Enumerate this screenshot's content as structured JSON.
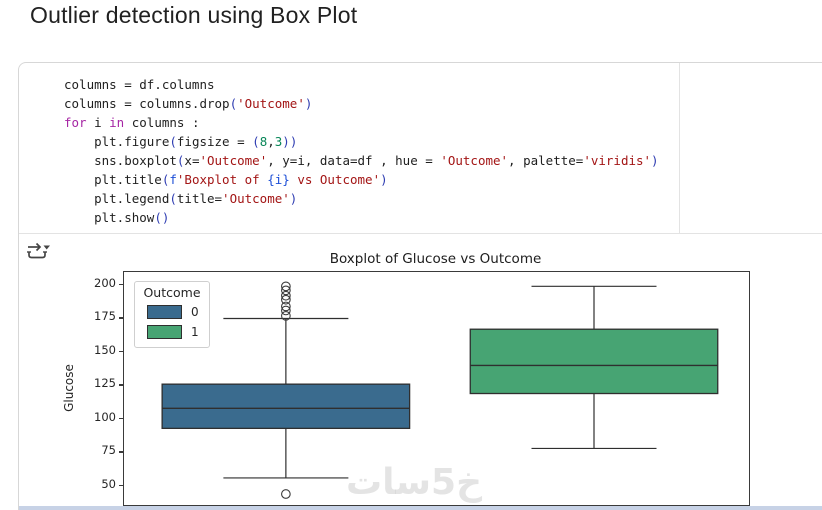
{
  "page": {
    "title": "Outlier detection using Box Plot",
    "watermark": "خ5سات"
  },
  "icons": {
    "output_toggle": "output-toggle-icon"
  },
  "code_cell": {
    "language": "python",
    "lines": [
      [
        {
          "t": "columns = df.columns",
          "c": "d"
        }
      ],
      [
        {
          "t": "columns = columns.drop",
          "c": "d"
        },
        {
          "t": "(",
          "c": "b"
        },
        {
          "t": "'Outcome'",
          "c": "s"
        },
        {
          "t": ")",
          "c": "b"
        }
      ],
      [
        {
          "t": "for",
          "c": "k"
        },
        {
          "t": " i ",
          "c": "d"
        },
        {
          "t": "in",
          "c": "k"
        },
        {
          "t": " columns :",
          "c": "d"
        }
      ],
      [
        {
          "t": "    plt.figure",
          "c": "d"
        },
        {
          "t": "(",
          "c": "b"
        },
        {
          "t": "figsize = ",
          "c": "d"
        },
        {
          "t": "(",
          "c": "b"
        },
        {
          "t": "8",
          "c": "n"
        },
        {
          "t": ",",
          "c": "d"
        },
        {
          "t": "3",
          "c": "n"
        },
        {
          "t": ")",
          "c": "b"
        },
        {
          "t": ")",
          "c": "b"
        }
      ],
      [
        {
          "t": "    sns.boxplot",
          "c": "d"
        },
        {
          "t": "(",
          "c": "b"
        },
        {
          "t": "x=",
          "c": "d"
        },
        {
          "t": "'Outcome'",
          "c": "s"
        },
        {
          "t": ", y=i, data=df , hue = ",
          "c": "d"
        },
        {
          "t": "'Outcome'",
          "c": "s"
        },
        {
          "t": ", palette=",
          "c": "d"
        },
        {
          "t": "'viridis'",
          "c": "s"
        },
        {
          "t": ")",
          "c": "b"
        }
      ],
      [
        {
          "t": "    plt.title",
          "c": "d"
        },
        {
          "t": "(",
          "c": "b"
        },
        {
          "t": "f",
          "c": "f"
        },
        {
          "t": "'Boxplot of ",
          "c": "s"
        },
        {
          "t": "{i}",
          "c": "f"
        },
        {
          "t": " vs Outcome'",
          "c": "s"
        },
        {
          "t": ")",
          "c": "b"
        }
      ],
      [
        {
          "t": "    plt.legend",
          "c": "d"
        },
        {
          "t": "(",
          "c": "b"
        },
        {
          "t": "title=",
          "c": "d"
        },
        {
          "t": "'Outcome'",
          "c": "s"
        },
        {
          "t": ")",
          "c": "b"
        }
      ],
      [
        {
          "t": "    plt.show",
          "c": "d"
        },
        {
          "t": "(",
          "c": "b"
        },
        {
          "t": ")",
          "c": "b"
        }
      ]
    ]
  },
  "output": {
    "chart_data": {
      "type": "boxplot",
      "title": "Boxplot of Glucose vs Outcome",
      "xlabel": "",
      "ylabel": "Glucose",
      "yticks": [
        200,
        175,
        150,
        125,
        100,
        75,
        50
      ],
      "ylim": [
        35.8,
        209.7
      ],
      "categories": [
        "0",
        "1"
      ],
      "grid": false,
      "legend": {
        "title": "Outcome",
        "position": "upper left",
        "entries": [
          {
            "label": "0",
            "color": "#3a6b8e"
          },
          {
            "label": "1",
            "color": "#47a473"
          }
        ]
      },
      "centers_frac": [
        0.259,
        0.752
      ],
      "box_width_frac": 0.396,
      "cap_width_frac": 0.2,
      "box_edge_color": "#2f2f2f",
      "groups": [
        {
          "category": "0",
          "fill": "#3a6b8e",
          "whisker_low": 56,
          "q1": 93,
          "median": 108,
          "q3": 126,
          "whisker_high": 175,
          "outliers": [
            199,
            196,
            192,
            189,
            184,
            181,
            177,
            44
          ]
        },
        {
          "category": "1",
          "fill": "#47a473",
          "whisker_low": 78,
          "q1": 119,
          "median": 140,
          "q3": 167,
          "whisker_high": 199,
          "outliers": []
        }
      ]
    }
  }
}
